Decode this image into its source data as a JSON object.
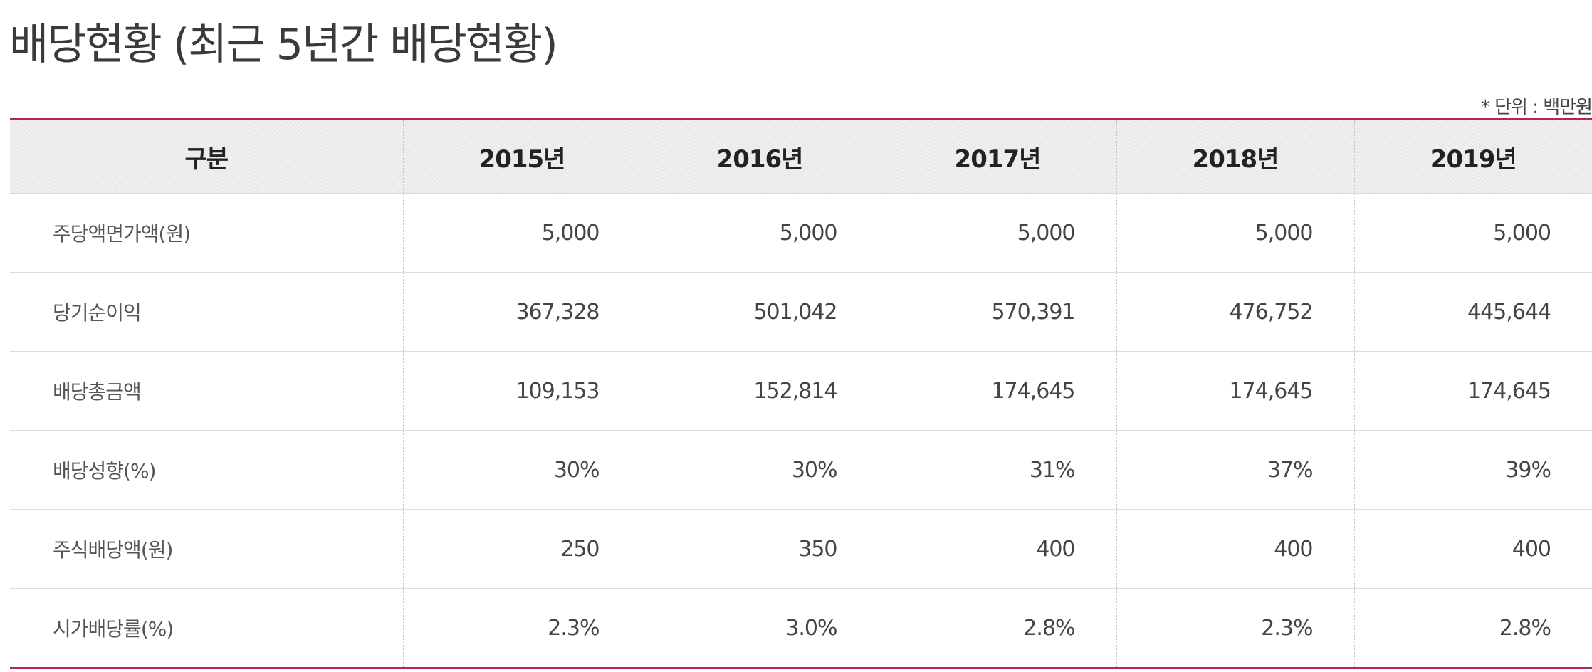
{
  "page": {
    "title": "배당현황 (최근 5년간 배당현황)",
    "unit_note": "* 단위 : 백만원"
  },
  "table": {
    "header_label": "구분",
    "years": [
      "2015년",
      "2016년",
      "2017년",
      "2018년",
      "2019년"
    ],
    "rows": [
      {
        "label": "주당액면가액(원)",
        "values": [
          "5,000",
          "5,000",
          "5,000",
          "5,000",
          "5,000"
        ]
      },
      {
        "label": "당기순이익",
        "values": [
          "367,328",
          "501,042",
          "570,391",
          "476,752",
          "445,644"
        ]
      },
      {
        "label": "배당총금액",
        "values": [
          "109,153",
          "152,814",
          "174,645",
          "174,645",
          "174,645"
        ]
      },
      {
        "label": "배당성향(%)",
        "values": [
          "30%",
          "30%",
          "31%",
          "37%",
          "39%"
        ]
      },
      {
        "label": "주식배당액(원)",
        "values": [
          "250",
          "350",
          "400",
          "400",
          "400"
        ]
      },
      {
        "label": "시가배당률(%)",
        "values": [
          "2.3%",
          "3.0%",
          "2.8%",
          "2.3%",
          "2.8%"
        ]
      }
    ]
  },
  "colors": {
    "accent": "#b8234f",
    "header_bg": "#f1f1f1",
    "text": "#444444"
  }
}
